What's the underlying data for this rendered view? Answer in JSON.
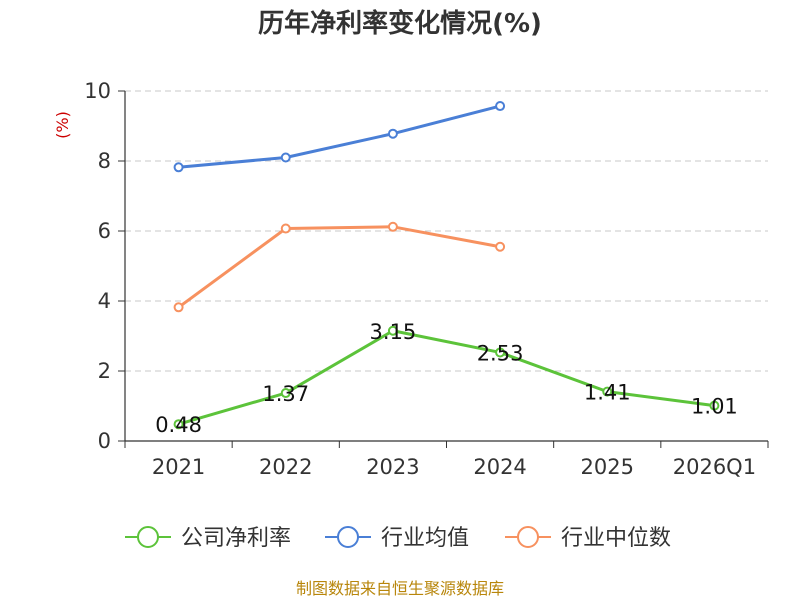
{
  "chart_data": {
    "type": "line",
    "title": "历年净利率变化情况(%)",
    "ylabel": "(%)",
    "categories": [
      "2021",
      "2022",
      "2023",
      "2024",
      "2025",
      "2026Q1"
    ],
    "ylim": [
      0,
      10
    ],
    "yticks": [
      "0",
      "2",
      "4",
      "6",
      "8",
      "10"
    ],
    "grid": true,
    "legend_position": "bottom",
    "series": [
      {
        "name": "公司净利率",
        "color": "#5cc33a",
        "values": [
          0.48,
          1.37,
          3.15,
          2.53,
          1.41,
          1.01
        ],
        "labels": [
          "0.48",
          "1.37",
          "3.15",
          "2.53",
          "1.41",
          "1.01"
        ]
      },
      {
        "name": "行业均值",
        "color": "#4a7fd6",
        "values": [
          7.82,
          8.1,
          8.78,
          9.57,
          null,
          null
        ]
      },
      {
        "name": "行业中位数",
        "color": "#f7915f",
        "values": [
          3.82,
          6.07,
          6.12,
          5.55,
          null,
          null
        ]
      }
    ],
    "source": "制图数据来自恒生聚源数据库"
  }
}
